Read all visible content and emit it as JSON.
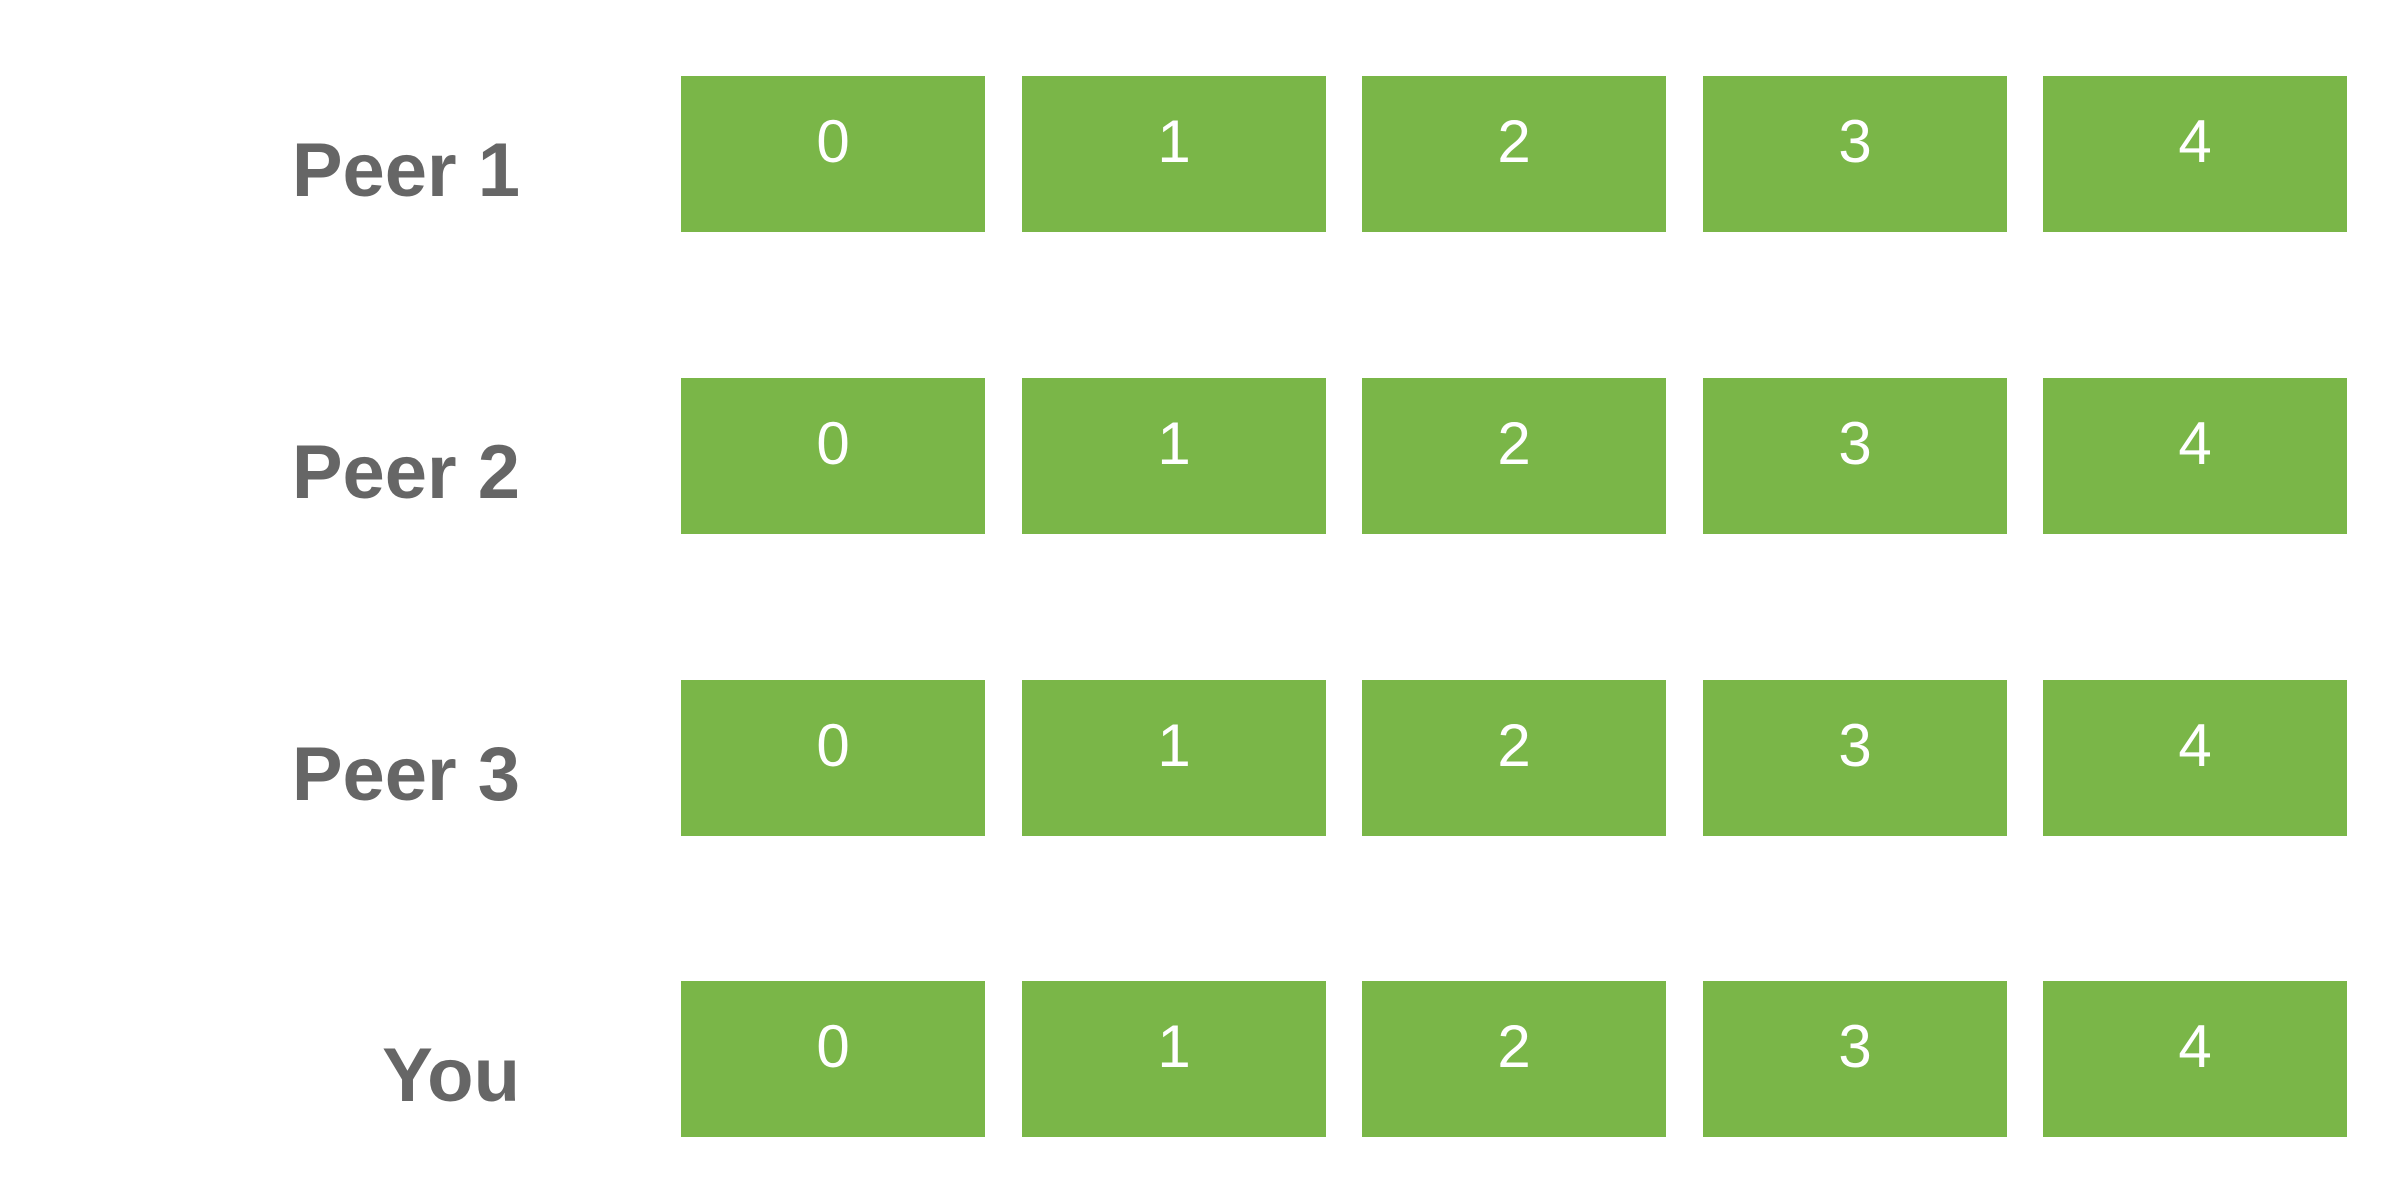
{
  "accent_color": "#7ab648",
  "label_color": "#666666",
  "rows": [
    {
      "label": "Peer 1",
      "pieces": [
        "0",
        "1",
        "2",
        "3",
        "4"
      ]
    },
    {
      "label": "Peer 2",
      "pieces": [
        "0",
        "1",
        "2",
        "3",
        "4"
      ]
    },
    {
      "label": "Peer 3",
      "pieces": [
        "0",
        "1",
        "2",
        "3",
        "4"
      ]
    },
    {
      "label": "You",
      "pieces": [
        "0",
        "1",
        "2",
        "3",
        "4"
      ]
    }
  ]
}
